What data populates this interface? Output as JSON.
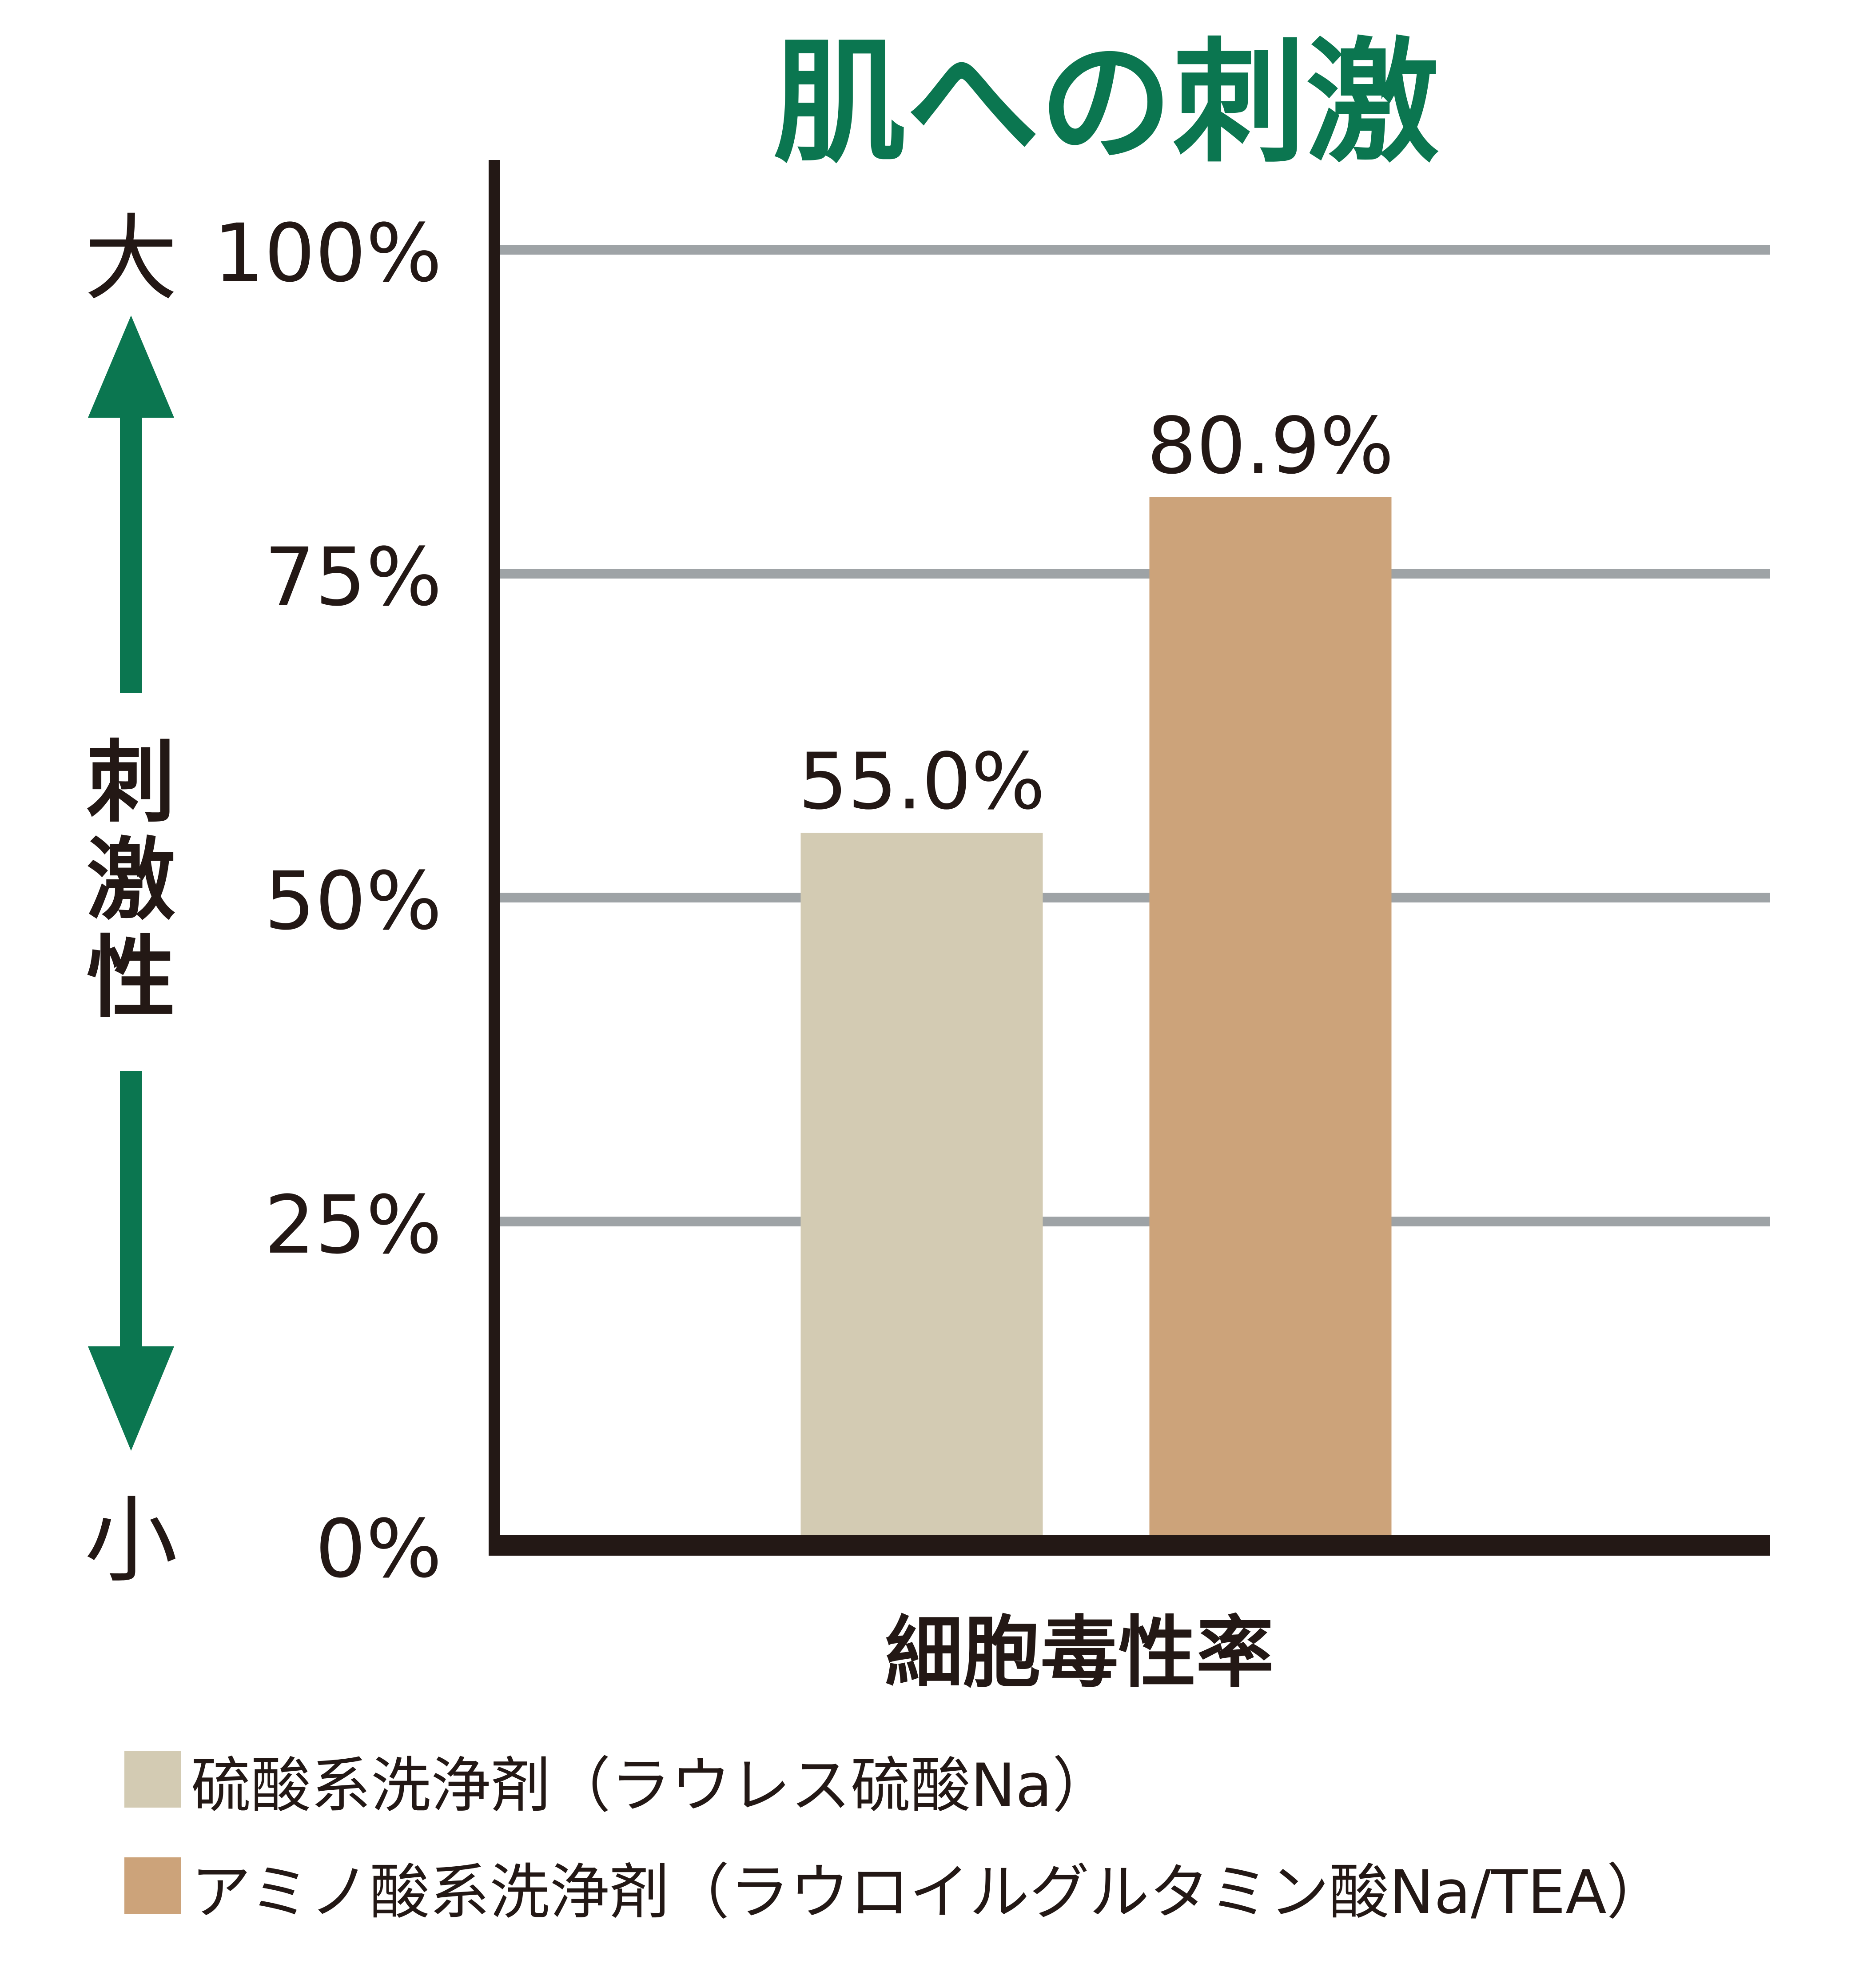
{
  "chart_data": {
    "type": "bar",
    "title": "肌への刺激",
    "xlabel": "細胞毒性率",
    "ylabel": "刺激性",
    "ylabel_top": "大",
    "ylabel_bottom": "小",
    "ylim": [
      0,
      100
    ],
    "yticks": [
      "0%",
      "25%",
      "50%",
      "75%",
      "100%"
    ],
    "ytick_values": [
      0,
      25,
      50,
      75,
      100
    ],
    "grid": true,
    "legend_position": "bottom-left",
    "series": [
      {
        "name": "硫酸系洗浄剤（ラウレス硫酸Na）",
        "value": 55.0,
        "label": "55.0%",
        "color": "#d3cbb3"
      },
      {
        "name": "アミノ酸系洗浄剤（ラウロイルグルタミン酸Na/TEA）",
        "value": 80.9,
        "label": "80.9%",
        "color": "#cca37a"
      }
    ]
  },
  "colors": {
    "accent": "#0b7650",
    "text": "#231815",
    "grid": "#9ea3a6",
    "axis": "#231815"
  }
}
